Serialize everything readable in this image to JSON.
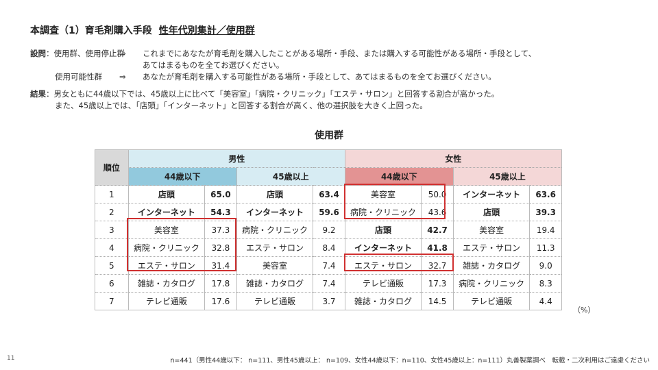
{
  "title": {
    "main": "本調査（1）育毛剤購入手段",
    "sub": "性年代別集計／使用群"
  },
  "description": {
    "question_label": "設問",
    "question_groups1": "：使用群、使用停止群",
    "arrow": "⇒",
    "question_text1a": "これまでにあなたが育毛剤を購入したことがある場所・手段、または購入する可能性がある場所・手段として、",
    "question_text1b": "あてはまるものを全てお選びください。",
    "question_groups2": "使用可能性群",
    "question_text2": "あなたが育毛剤を購入する可能性がある場所・手段として、あてはまるものを全てお選びください。",
    "result_label": "結果",
    "result_text1": "：男女ともに44歳以下では、45歳以上に比べて「美容室」「病院・クリニック」「エステ・サロン」と回答する割合が高かった。",
    "result_text2": "また、45歳以上では、「店頭」「インターネット」と回答する割合が高く、他の選択肢を大きく上回った。"
  },
  "table": {
    "title": "使用群",
    "rank_header": "順位",
    "male_header": "男性",
    "female_header": "女性",
    "age_headers": [
      "44歳以下",
      "45歳以上",
      "44歳以下",
      "45歳以上"
    ],
    "rows": [
      {
        "rank": "1",
        "cells": [
          [
            "店頭",
            "65.0"
          ],
          [
            "店頭",
            "63.4"
          ],
          [
            "美容室",
            "50.0"
          ],
          [
            "インターネット",
            "63.6"
          ]
        ]
      },
      {
        "rank": "2",
        "cells": [
          [
            "インターネット",
            "54.3"
          ],
          [
            "インターネット",
            "59.6"
          ],
          [
            "病院・クリニック",
            "43.6"
          ],
          [
            "店頭",
            "39.3"
          ]
        ]
      },
      {
        "rank": "3",
        "cells": [
          [
            "美容室",
            "37.3"
          ],
          [
            "病院・クリニック",
            "9.2"
          ],
          [
            "店頭",
            "42.7"
          ],
          [
            "美容室",
            "19.4"
          ]
        ]
      },
      {
        "rank": "4",
        "cells": [
          [
            "病院・クリニック",
            "32.8"
          ],
          [
            "エステ・サロン",
            "8.4"
          ],
          [
            "インターネット",
            "41.8"
          ],
          [
            "エステ・サロン",
            "11.3"
          ]
        ]
      },
      {
        "rank": "5",
        "cells": [
          [
            "エステ・サロン",
            "31.4"
          ],
          [
            "美容室",
            "7.4"
          ],
          [
            "エステ・サロン",
            "32.7"
          ],
          [
            "雑誌・カタログ",
            "9.0"
          ]
        ]
      },
      {
        "rank": "6",
        "cells": [
          [
            "雑誌・カタログ",
            "17.8"
          ],
          [
            "雑誌・カタログ",
            "7.4"
          ],
          [
            "テレビ通販",
            "17.3"
          ],
          [
            "病院・クリニック",
            "8.3"
          ]
        ]
      },
      {
        "rank": "7",
        "cells": [
          [
            "テレビ通販",
            "17.6"
          ],
          [
            "テレビ通販",
            "3.7"
          ],
          [
            "雑誌・カタログ",
            "14.5"
          ],
          [
            "テレビ通販",
            "4.4"
          ]
        ]
      }
    ],
    "unit": "（%）"
  },
  "page_number": "11",
  "footer": "n=441（男性44歳以下： n=111、男性45歳以上： n=109、女性44歳以下：n=110、女性45歳以上：n=111）丸善製薬調べ　転載・二次利用はご遠慮ください",
  "colors": {
    "male_light": "#d7ecf3",
    "male_dark": "#92c9dd",
    "female_light": "#f4d7d7",
    "female_dark": "#e39393",
    "highlight_box": "#d03030"
  }
}
